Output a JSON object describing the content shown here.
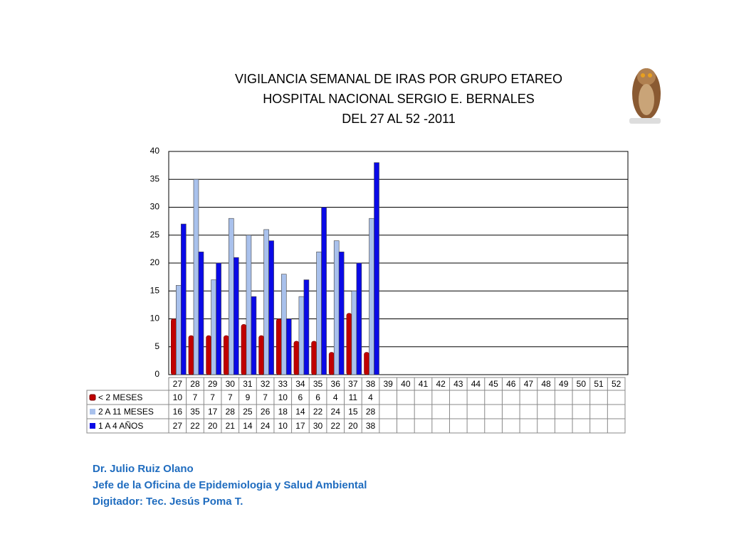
{
  "chart_data": {
    "type": "bar",
    "title": [
      "VIGILANCIA SEMANAL DE IRAS POR GRUPO ETAREO",
      "HOSPITAL NACIONAL SERGIO E. BERNALES",
      "DEL 27 AL 52 -2011"
    ],
    "categories": [
      "27",
      "28",
      "29",
      "30",
      "31",
      "32",
      "33",
      "34",
      "35",
      "36",
      "37",
      "38",
      "39",
      "40",
      "41",
      "42",
      "43",
      "44",
      "45",
      "46",
      "47",
      "48",
      "49",
      "50",
      "51",
      "52"
    ],
    "series": [
      {
        "name": "< 2 MESES",
        "color": "#c00000",
        "values": [
          10,
          7,
          7,
          7,
          9,
          7,
          10,
          6,
          6,
          4,
          11,
          4,
          null,
          null,
          null,
          null,
          null,
          null,
          null,
          null,
          null,
          null,
          null,
          null,
          null,
          null
        ]
      },
      {
        "name": "2 A 11 MESES",
        "color": "#a9c1ec",
        "values": [
          16,
          35,
          17,
          28,
          25,
          26,
          18,
          14,
          22,
          24,
          15,
          28,
          null,
          null,
          null,
          null,
          null,
          null,
          null,
          null,
          null,
          null,
          null,
          null,
          null,
          null
        ]
      },
      {
        "name": "1 A 4 AÑOS",
        "color": "#0a0ae6",
        "values": [
          27,
          22,
          20,
          21,
          14,
          24,
          10,
          17,
          30,
          22,
          20,
          38,
          null,
          null,
          null,
          null,
          null,
          null,
          null,
          null,
          null,
          null,
          null,
          null,
          null,
          null
        ]
      }
    ],
    "ylim": [
      0,
      40
    ],
    "yticks": [
      0,
      5,
      10,
      15,
      20,
      25,
      30,
      35,
      40
    ],
    "grid": true,
    "footer": [
      "Dr.  Julio Ruiz Olano",
      "Jefe de la Oficina de Epidemiologia y  Salud Ambiental",
      "Digitador: Tec. Jesús Poma T."
    ]
  }
}
